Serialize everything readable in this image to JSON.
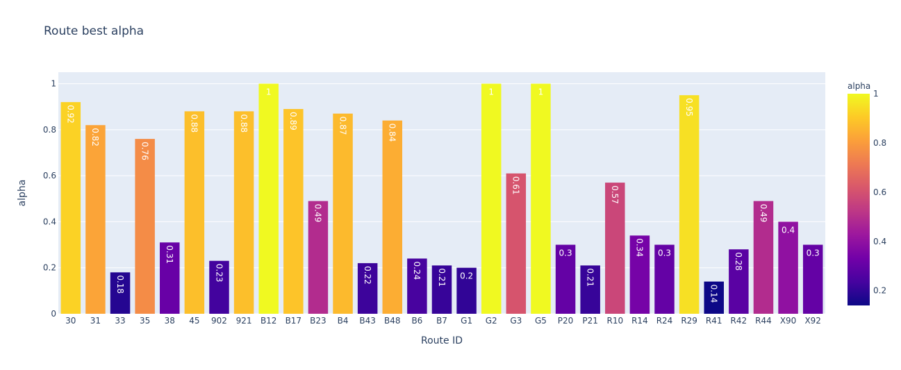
{
  "chart_data": {
    "type": "bar",
    "title": "Route best alpha",
    "xlabel": "Route ID",
    "ylabel": "alpha",
    "ylim": [
      0,
      1.05
    ],
    "y_ticks": [
      0,
      0.2,
      0.4,
      0.6,
      0.8,
      1
    ],
    "y_tick_labels": [
      "0",
      "0.2",
      "0.4",
      "0.6",
      "0.8",
      "1"
    ],
    "grid": true,
    "categories": [
      "30",
      "31",
      "33",
      "35",
      "38",
      "45",
      "902",
      "921",
      "B12",
      "B17",
      "B23",
      "B4",
      "B43",
      "B48",
      "B6",
      "B7",
      "G1",
      "G2",
      "G3",
      "G5",
      "P20",
      "P21",
      "R10",
      "R14",
      "R24",
      "R29",
      "R41",
      "R42",
      "R44",
      "X90",
      "X92"
    ],
    "values": [
      0.92,
      0.82,
      0.18,
      0.76,
      0.31,
      0.88,
      0.23,
      0.88,
      1,
      0.89,
      0.49,
      0.87,
      0.22,
      0.84,
      0.24,
      0.21,
      0.2,
      1,
      0.61,
      1,
      0.3,
      0.21,
      0.57,
      0.34,
      0.3,
      0.95,
      0.14,
      0.28,
      0.49,
      0.4,
      0.3
    ],
    "labels": [
      "0.92",
      "0.82",
      "0.18",
      "0.76",
      "0.31",
      "0.88",
      "0.23",
      "0.88",
      "1",
      "0.89",
      "0.49",
      "0.87",
      "0.22",
      "0.84",
      "0.24",
      "0.21",
      "0.2",
      "1",
      "0.61",
      "1",
      "0.3",
      "0.21",
      "0.57",
      "0.34",
      "0.3",
      "0.95",
      "0.14",
      "0.28",
      "0.49",
      "0.4",
      "0.3"
    ],
    "colorbar": {
      "title": "alpha",
      "range": [
        0.14,
        1
      ],
      "ticks": [
        0.2,
        0.4,
        0.6,
        0.8,
        1
      ],
      "tick_labels": [
        "0.2",
        "0.4",
        "0.6",
        "0.8",
        "1"
      ],
      "colorscale": [
        "#0d0887",
        "#46039f",
        "#7201a8",
        "#9c179e",
        "#bd3786",
        "#d8576b",
        "#ed7953",
        "#fb9f3a",
        "#fdca26",
        "#f0f921"
      ]
    },
    "plot_background": "#e5ecf6",
    "gridline_color": "#ffffff",
    "text_color": "#2a3f5f"
  }
}
